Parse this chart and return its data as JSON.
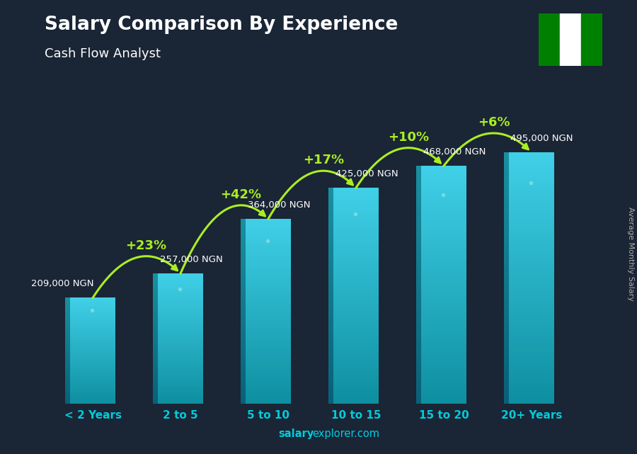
{
  "title": "Salary Comparison By Experience",
  "subtitle": "Cash Flow Analyst",
  "categories": [
    "< 2 Years",
    "2 to 5",
    "5 to 10",
    "10 to 15",
    "15 to 20",
    "20+ Years"
  ],
  "values": [
    209000,
    257000,
    364000,
    425000,
    468000,
    495000
  ],
  "value_labels": [
    "209,000 NGN",
    "257,000 NGN",
    "364,000 NGN",
    "425,000 NGN",
    "468,000 NGN",
    "495,000 NGN"
  ],
  "pct_labels": [
    "+23%",
    "+42%",
    "+17%",
    "+10%",
    "+6%"
  ],
  "bar_color_face": "#1ab8d4",
  "bar_color_light": "#40d0e8",
  "bar_color_dark": "#0e8fa0",
  "bar_color_side": "#0d7a8a",
  "bg_color": "#1a2535",
  "title_color": "#ffffff",
  "subtitle_color": "#ffffff",
  "value_label_color": "#ffffff",
  "tick_color": "#00ccdd",
  "pct_color": "#aaee22",
  "arrow_color": "#aaee22",
  "watermark_bold": "salary",
  "watermark_normal": "explorer.com",
  "right_label": "Average Monthly Salary",
  "ylim": [
    0,
    580000
  ],
  "figsize": [
    9.0,
    6.41
  ],
  "dpi": 100
}
